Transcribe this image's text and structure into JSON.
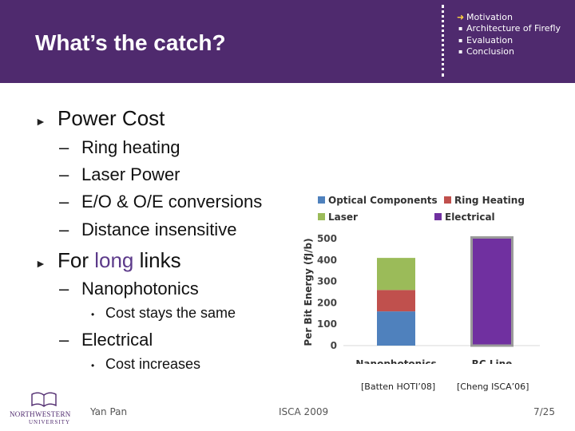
{
  "slide": {
    "title": "What’s the catch?",
    "outline": [
      {
        "label": "Motivation",
        "current": true
      },
      {
        "label": "Architecture of Firefly",
        "current": false
      },
      {
        "label": "Evaluation",
        "current": false
      },
      {
        "label": "Conclusion",
        "current": false
      }
    ],
    "bullets": {
      "power_cost": "Power Cost",
      "ring_heating": "Ring heating",
      "laser_power": "Laser Power",
      "conversions": "E/O & O/E conversions",
      "distance": "Distance insensitive",
      "for_long_links_pre": "For ",
      "for_long_links_hl": "long",
      "for_long_links_post": " links",
      "nanophotonics": "Nanophotonics",
      "cost_same": "Cost stays the same",
      "electrical": "Electrical",
      "cost_increases": "Cost increases"
    },
    "marker_tri": "►",
    "marker_dash": "–",
    "marker_dot": "•",
    "marker_arrow": "➜",
    "marker_square": "▪",
    "citations": [
      "[Batten HOTI’08]",
      "[Cheng ISCA’06]"
    ],
    "footer": {
      "author": "Yan Pan",
      "conference": "ISCA 2009",
      "page": "7/25",
      "logo_name": "NORTHWESTERN",
      "logo_univ": "UNIVERSITY"
    }
  },
  "colors": {
    "header_bg": "#4f2a6e",
    "optical": "#4f81bd",
    "ring": "#c0504d",
    "laser": "#9bbb59",
    "electrical": "#7030a0"
  },
  "chart_data": {
    "type": "bar",
    "stacked": true,
    "categories": [
      "Nanophotonics",
      "RC Line"
    ],
    "ylabel": "Per Bit Energy (fJ/b)",
    "ylim": [
      0,
      500
    ],
    "yticks": [
      0,
      100,
      200,
      300,
      400,
      500
    ],
    "legend_position": "top",
    "series": [
      {
        "name": "Optical Components",
        "color": "#4f81bd",
        "values": [
          160,
          0
        ]
      },
      {
        "name": "Ring Heating",
        "color": "#c0504d",
        "values": [
          100,
          0
        ]
      },
      {
        "name": "Laser",
        "color": "#9bbb59",
        "values": [
          150,
          0
        ]
      },
      {
        "name": "Electrical",
        "color": "#7030a0",
        "values": [
          0,
          500
        ]
      }
    ]
  }
}
